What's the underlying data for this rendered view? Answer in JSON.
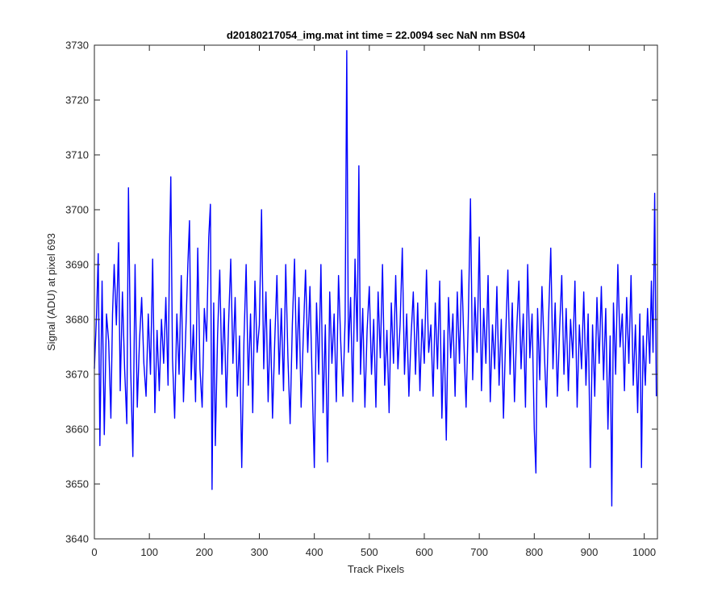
{
  "chart_data": {
    "type": "line",
    "title": "d20180217054_img.mat int time = 22.0094 sec  NaN nm BS04",
    "xlabel": "Track Pixels",
    "ylabel": "Signal (ADU) at pixel 693",
    "xlim": [
      0,
      1024
    ],
    "ylim": [
      3640,
      3730
    ],
    "x_ticks": [
      0,
      100,
      200,
      300,
      400,
      500,
      600,
      700,
      800,
      900,
      1000
    ],
    "y_ticks": [
      3640,
      3650,
      3660,
      3670,
      3680,
      3690,
      3700,
      3710,
      3720,
      3730
    ],
    "x_tick_labels": [
      "0",
      "100",
      "200",
      "300",
      "400",
      "500",
      "600",
      "700",
      "800",
      "900",
      "1000"
    ],
    "y_tick_labels": [
      "3640",
      "3650",
      "3660",
      "3670",
      "3680",
      "3690",
      "3700",
      "3710",
      "3720",
      "3730"
    ],
    "grid": false,
    "box": true,
    "series": [
      {
        "color": "#0000ff",
        "points": [
          [
            0,
            3671
          ],
          [
            4,
            3681
          ],
          [
            7,
            3692
          ],
          [
            10,
            3657
          ],
          [
            14,
            3687
          ],
          [
            18,
            3659
          ],
          [
            22,
            3681
          ],
          [
            26,
            3676
          ],
          [
            30,
            3662
          ],
          [
            33,
            3681
          ],
          [
            36,
            3690
          ],
          [
            40,
            3679
          ],
          [
            44,
            3694
          ],
          [
            47,
            3667
          ],
          [
            51,
            3685
          ],
          [
            55,
            3671
          ],
          [
            59,
            3661
          ],
          [
            62,
            3704
          ],
          [
            66,
            3671
          ],
          [
            70,
            3655
          ],
          [
            74,
            3690
          ],
          [
            78,
            3664
          ],
          [
            82,
            3676
          ],
          [
            86,
            3684
          ],
          [
            90,
            3672
          ],
          [
            94,
            3666
          ],
          [
            98,
            3681
          ],
          [
            102,
            3670
          ],
          [
            106,
            3691
          ],
          [
            110,
            3663
          ],
          [
            114,
            3678
          ],
          [
            118,
            3667
          ],
          [
            122,
            3680
          ],
          [
            126,
            3672
          ],
          [
            130,
            3684
          ],
          [
            134,
            3668
          ],
          [
            137,
            3695
          ],
          [
            139,
            3706
          ],
          [
            142,
            3673
          ],
          [
            146,
            3662
          ],
          [
            150,
            3681
          ],
          [
            154,
            3670
          ],
          [
            158,
            3688
          ],
          [
            162,
            3665
          ],
          [
            166,
            3677
          ],
          [
            170,
            3690
          ],
          [
            173,
            3698
          ],
          [
            176,
            3669
          ],
          [
            180,
            3679
          ],
          [
            184,
            3665
          ],
          [
            188,
            3693
          ],
          [
            192,
            3671
          ],
          [
            196,
            3664
          ],
          [
            200,
            3682
          ],
          [
            204,
            3676
          ],
          [
            208,
            3695
          ],
          [
            211,
            3701
          ],
          [
            214,
            3649
          ],
          [
            217,
            3683
          ],
          [
            220,
            3657
          ],
          [
            224,
            3677
          ],
          [
            228,
            3689
          ],
          [
            232,
            3670
          ],
          [
            236,
            3682
          ],
          [
            240,
            3664
          ],
          [
            244,
            3679
          ],
          [
            248,
            3691
          ],
          [
            252,
            3672
          ],
          [
            256,
            3684
          ],
          [
            260,
            3666
          ],
          [
            264,
            3677
          ],
          [
            268,
            3653
          ],
          [
            272,
            3676
          ],
          [
            276,
            3690
          ],
          [
            280,
            3668
          ],
          [
            284,
            3681
          ],
          [
            288,
            3663
          ],
          [
            292,
            3687
          ],
          [
            296,
            3674
          ],
          [
            300,
            3679
          ],
          [
            304,
            3700
          ],
          [
            308,
            3671
          ],
          [
            312,
            3685
          ],
          [
            316,
            3665
          ],
          [
            320,
            3680
          ],
          [
            324,
            3662
          ],
          [
            328,
            3676
          ],
          [
            332,
            3688
          ],
          [
            336,
            3670
          ],
          [
            340,
            3682
          ],
          [
            344,
            3667
          ],
          [
            348,
            3690
          ],
          [
            352,
            3673
          ],
          [
            356,
            3661
          ],
          [
            360,
            3679
          ],
          [
            364,
            3691
          ],
          [
            368,
            3671
          ],
          [
            372,
            3684
          ],
          [
            376,
            3664
          ],
          [
            380,
            3677
          ],
          [
            384,
            3689
          ],
          [
            388,
            3674
          ],
          [
            392,
            3686
          ],
          [
            396,
            3669
          ],
          [
            400,
            3653
          ],
          [
            404,
            3683
          ],
          [
            408,
            3670
          ],
          [
            412,
            3690
          ],
          [
            416,
            3663
          ],
          [
            420,
            3679
          ],
          [
            424,
            3654
          ],
          [
            428,
            3685
          ],
          [
            432,
            3672
          ],
          [
            436,
            3681
          ],
          [
            440,
            3665
          ],
          [
            444,
            3688
          ],
          [
            448,
            3676
          ],
          [
            452,
            3666
          ],
          [
            456,
            3680
          ],
          [
            459,
            3729
          ],
          [
            462,
            3674
          ],
          [
            466,
            3684
          ],
          [
            470,
            3665
          ],
          [
            474,
            3691
          ],
          [
            478,
            3676
          ],
          [
            481,
            3708
          ],
          [
            484,
            3670
          ],
          [
            488,
            3682
          ],
          [
            492,
            3664
          ],
          [
            496,
            3678
          ],
          [
            500,
            3686
          ],
          [
            504,
            3670
          ],
          [
            508,
            3680
          ],
          [
            512,
            3664
          ],
          [
            516,
            3685
          ],
          [
            520,
            3673
          ],
          [
            524,
            3690
          ],
          [
            528,
            3668
          ],
          [
            532,
            3678
          ],
          [
            536,
            3663
          ],
          [
            540,
            3683
          ],
          [
            544,
            3672
          ],
          [
            548,
            3688
          ],
          [
            552,
            3671
          ],
          [
            556,
            3679
          ],
          [
            560,
            3693
          ],
          [
            564,
            3670
          ],
          [
            568,
            3681
          ],
          [
            572,
            3666
          ],
          [
            576,
            3677
          ],
          [
            580,
            3685
          ],
          [
            584,
            3670
          ],
          [
            588,
            3683
          ],
          [
            592,
            3667
          ],
          [
            596,
            3680
          ],
          [
            600,
            3672
          ],
          [
            604,
            3689
          ],
          [
            608,
            3674
          ],
          [
            612,
            3679
          ],
          [
            616,
            3666
          ],
          [
            620,
            3683
          ],
          [
            624,
            3671
          ],
          [
            628,
            3687
          ],
          [
            632,
            3662
          ],
          [
            636,
            3678
          ],
          [
            640,
            3658
          ],
          [
            644,
            3684
          ],
          [
            648,
            3673
          ],
          [
            652,
            3681
          ],
          [
            656,
            3666
          ],
          [
            660,
            3685
          ],
          [
            664,
            3672
          ],
          [
            668,
            3689
          ],
          [
            672,
            3676
          ],
          [
            676,
            3664
          ],
          [
            680,
            3680
          ],
          [
            684,
            3702
          ],
          [
            688,
            3669
          ],
          [
            692,
            3684
          ],
          [
            696,
            3674
          ],
          [
            700,
            3695
          ],
          [
            704,
            3667
          ],
          [
            708,
            3682
          ],
          [
            712,
            3672
          ],
          [
            716,
            3688
          ],
          [
            720,
            3665
          ],
          [
            724,
            3679
          ],
          [
            728,
            3671
          ],
          [
            732,
            3686
          ],
          [
            736,
            3668
          ],
          [
            740,
            3680
          ],
          [
            744,
            3662
          ],
          [
            748,
            3677
          ],
          [
            752,
            3689
          ],
          [
            756,
            3670
          ],
          [
            760,
            3683
          ],
          [
            764,
            3665
          ],
          [
            768,
            3678
          ],
          [
            772,
            3687
          ],
          [
            776,
            3671
          ],
          [
            780,
            3681
          ],
          [
            784,
            3664
          ],
          [
            788,
            3690
          ],
          [
            792,
            3673
          ],
          [
            796,
            3681
          ],
          [
            800,
            3660
          ],
          [
            803,
            3652
          ],
          [
            806,
            3682
          ],
          [
            810,
            3669
          ],
          [
            814,
            3686
          ],
          [
            818,
            3675
          ],
          [
            822,
            3664
          ],
          [
            826,
            3680
          ],
          [
            830,
            3693
          ],
          [
            834,
            3671
          ],
          [
            838,
            3683
          ],
          [
            842,
            3666
          ],
          [
            846,
            3678
          ],
          [
            850,
            3688
          ],
          [
            854,
            3670
          ],
          [
            858,
            3682
          ],
          [
            862,
            3667
          ],
          [
            866,
            3680
          ],
          [
            870,
            3673
          ],
          [
            874,
            3687
          ],
          [
            878,
            3664
          ],
          [
            882,
            3679
          ],
          [
            886,
            3671
          ],
          [
            890,
            3685
          ],
          [
            894,
            3668
          ],
          [
            898,
            3681
          ],
          [
            902,
            3653
          ],
          [
            906,
            3679
          ],
          [
            910,
            3666
          ],
          [
            914,
            3684
          ],
          [
            918,
            3672
          ],
          [
            922,
            3686
          ],
          [
            926,
            3669
          ],
          [
            930,
            3682
          ],
          [
            934,
            3660
          ],
          [
            938,
            3677
          ],
          [
            941,
            3646
          ],
          [
            944,
            3683
          ],
          [
            948,
            3670
          ],
          [
            952,
            3690
          ],
          [
            956,
            3675
          ],
          [
            960,
            3681
          ],
          [
            964,
            3667
          ],
          [
            968,
            3684
          ],
          [
            972,
            3672
          ],
          [
            976,
            3688
          ],
          [
            980,
            3668
          ],
          [
            984,
            3679
          ],
          [
            988,
            3663
          ],
          [
            992,
            3681
          ],
          [
            995,
            3653
          ],
          [
            998,
            3677
          ],
          [
            1002,
            3668
          ],
          [
            1006,
            3682
          ],
          [
            1010,
            3672
          ],
          [
            1013,
            3687
          ],
          [
            1016,
            3674
          ],
          [
            1019,
            3703
          ],
          [
            1022,
            3666
          ]
        ]
      }
    ]
  }
}
